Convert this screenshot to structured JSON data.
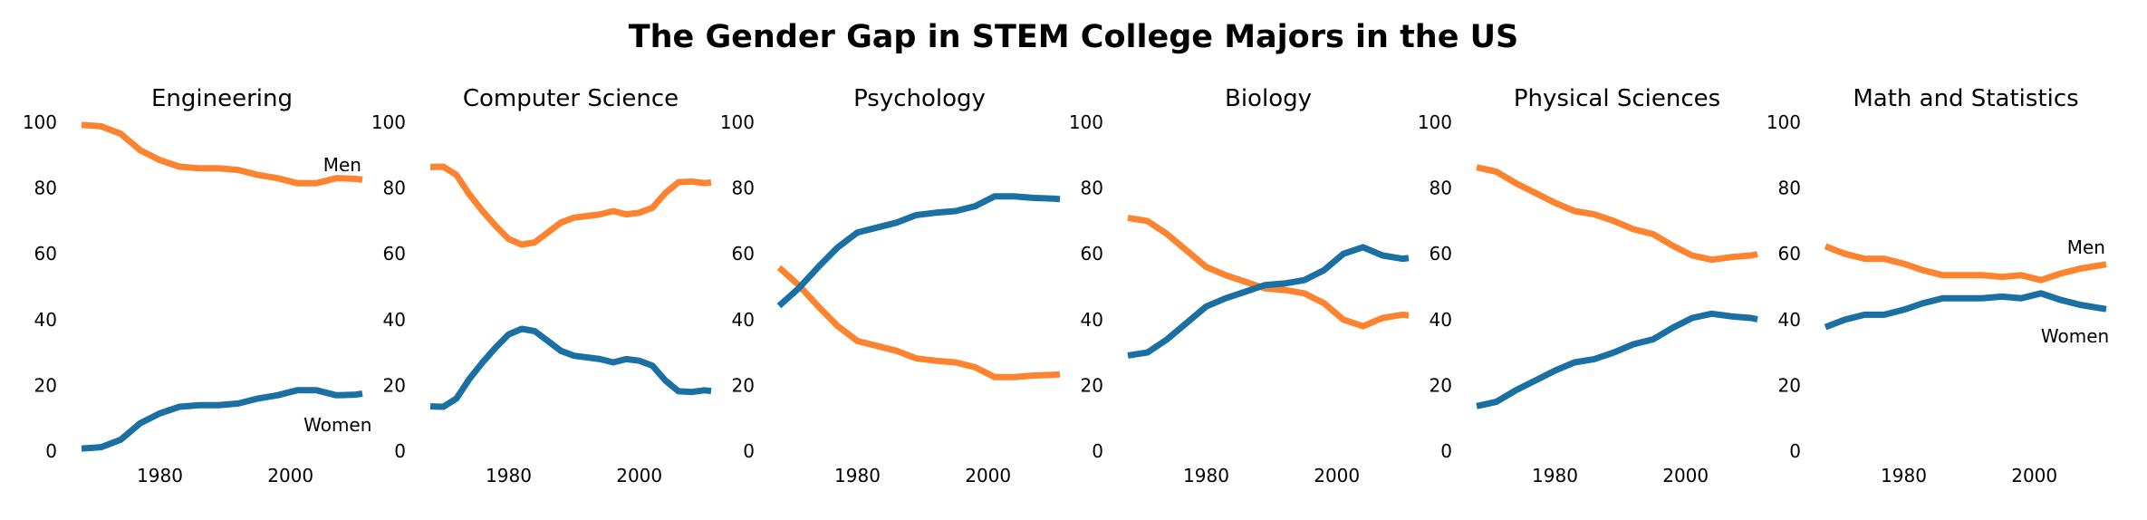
{
  "title": "The Gender Gap in STEM College Majors in the US",
  "colors": {
    "men": "#fc8430",
    "women": "#1a6fa3"
  },
  "chart_data": [
    {
      "type": "line",
      "title": "Engineering",
      "xlim": [
        1968,
        2011
      ],
      "ylim": [
        0,
        100
      ],
      "xticks": [
        1980,
        2000
      ],
      "yticks": [
        0,
        20,
        40,
        60,
        80,
        100
      ],
      "grid": false,
      "legend": "none",
      "x": [
        1968,
        1971,
        1974,
        1977,
        1980,
        1983,
        1986,
        1989,
        1992,
        1995,
        1998,
        2001,
        2004,
        2007,
        2010,
        2011
      ],
      "series": [
        {
          "name": "Men",
          "values": [
            99.2,
            98.8,
            96.5,
            91.5,
            88.5,
            86.5,
            86,
            86,
            85.5,
            84,
            83,
            81.5,
            81.5,
            83,
            82.8,
            82.5
          ]
        },
        {
          "name": "Women",
          "values": [
            0.8,
            1.2,
            3.5,
            8.5,
            11.5,
            13.5,
            14,
            14,
            14.5,
            16,
            17,
            18.5,
            18.5,
            17,
            17.2,
            17.5
          ]
        }
      ],
      "annotations": [
        {
          "text": "Men",
          "x": 2005,
          "y": 87
        },
        {
          "text": "Women",
          "x": 2002,
          "y": 8
        }
      ]
    },
    {
      "type": "line",
      "title": "Computer Science",
      "xlim": [
        1968,
        2011
      ],
      "ylim": [
        0,
        100
      ],
      "xticks": [
        1980,
        2000
      ],
      "yticks": [
        0,
        20,
        40,
        60,
        80,
        100
      ],
      "grid": false,
      "legend": "none",
      "x": [
        1968,
        1970,
        1972,
        1974,
        1976,
        1978,
        1980,
        1982,
        1984,
        1986,
        1988,
        1990,
        1992,
        1994,
        1996,
        1998,
        2000,
        2002,
        2004,
        2006,
        2008,
        2010,
        2011
      ],
      "series": [
        {
          "name": "Men",
          "values": [
            86.4,
            86.5,
            84,
            78,
            73,
            68.5,
            64.5,
            62.8,
            63.5,
            66.5,
            69.5,
            71,
            71.5,
            72,
            73,
            72,
            72.5,
            74,
            78.5,
            81.8,
            82,
            81.5,
            81.7
          ]
        },
        {
          "name": "Women",
          "values": [
            13.6,
            13.5,
            16,
            22,
            27,
            31.5,
            35.5,
            37.2,
            36.5,
            33.5,
            30.5,
            29,
            28.5,
            28,
            27,
            28,
            27.5,
            26,
            21.5,
            18.2,
            18,
            18.5,
            18.3
          ]
        }
      ]
    },
    {
      "type": "line",
      "title": "Psychology",
      "xlim": [
        1968,
        2011
      ],
      "ylim": [
        0,
        100
      ],
      "xticks": [
        1980,
        2000
      ],
      "yticks": [
        0,
        20,
        40,
        60,
        80,
        100
      ],
      "grid": false,
      "legend": "none",
      "x": [
        1968,
        1971,
        1974,
        1977,
        1980,
        1983,
        1986,
        1989,
        1992,
        1995,
        1998,
        2001,
        2004,
        2007,
        2010,
        2011
      ],
      "series": [
        {
          "name": "Men",
          "values": [
            55.8,
            50.5,
            44,
            38,
            33.5,
            32,
            30.5,
            28.2,
            27.5,
            27,
            25.5,
            22.5,
            22.5,
            23,
            23.2,
            23.4
          ]
        },
        {
          "name": "Women",
          "values": [
            44.2,
            49.5,
            56,
            62,
            66.5,
            68,
            69.5,
            71.8,
            72.5,
            73,
            74.5,
            77.5,
            77.5,
            77,
            76.8,
            76.6
          ]
        }
      ]
    },
    {
      "type": "line",
      "title": "Biology",
      "xlim": [
        1968,
        2011
      ],
      "ylim": [
        0,
        100
      ],
      "xticks": [
        1980,
        2000
      ],
      "yticks": [
        0,
        20,
        40,
        60,
        80,
        100
      ],
      "grid": false,
      "legend": "none",
      "x": [
        1968,
        1971,
        1974,
        1977,
        1980,
        1983,
        1986,
        1989,
        1992,
        1995,
        1998,
        2001,
        2004,
        2007,
        2010,
        2011
      ],
      "series": [
        {
          "name": "Men",
          "values": [
            70.9,
            70,
            66,
            61,
            56,
            53.5,
            51.5,
            49.5,
            49,
            48,
            45,
            40,
            38,
            40.5,
            41.5,
            41.3
          ]
        },
        {
          "name": "Women",
          "values": [
            29.1,
            30,
            34,
            39,
            44,
            46.5,
            48.5,
            50.5,
            51,
            52,
            55,
            60,
            62,
            59.5,
            58.5,
            58.7
          ]
        }
      ]
    },
    {
      "type": "line",
      "title": "Physical Sciences",
      "xlim": [
        1968,
        2011
      ],
      "ylim": [
        0,
        100
      ],
      "xticks": [
        1980,
        2000
      ],
      "yticks": [
        0,
        20,
        40,
        60,
        80,
        100
      ],
      "grid": false,
      "legend": "none",
      "x": [
        1968,
        1971,
        1974,
        1977,
        1980,
        1983,
        1986,
        1989,
        1992,
        1995,
        1998,
        2001,
        2004,
        2007,
        2010,
        2011
      ],
      "series": [
        {
          "name": "Men",
          "values": [
            86.3,
            85,
            81.5,
            78.5,
            75.5,
            73,
            72,
            70,
            67.5,
            66,
            62.5,
            59.5,
            58.2,
            59,
            59.5,
            59.9
          ]
        },
        {
          "name": "Women",
          "values": [
            13.7,
            15,
            18.5,
            21.5,
            24.5,
            27,
            28,
            30,
            32.5,
            34,
            37.5,
            40.5,
            41.8,
            41,
            40.5,
            40.1
          ]
        }
      ]
    },
    {
      "type": "line",
      "title": "Math and Statistics",
      "xlim": [
        1968,
        2011
      ],
      "ylim": [
        0,
        100
      ],
      "xticks": [
        1980,
        2000
      ],
      "yticks": [
        0,
        20,
        40,
        60,
        80,
        100
      ],
      "grid": false,
      "legend": "none",
      "x": [
        1968,
        1971,
        1974,
        1977,
        1980,
        1983,
        1986,
        1989,
        1992,
        1995,
        1998,
        2001,
        2004,
        2007,
        2010,
        2011
      ],
      "series": [
        {
          "name": "Men",
          "values": [
            62.3,
            60,
            58.5,
            58.5,
            57,
            55,
            53.5,
            53.5,
            53.5,
            53,
            53.5,
            52,
            54,
            55.5,
            56.5,
            56.8
          ]
        },
        {
          "name": "Women",
          "values": [
            37.7,
            40,
            41.5,
            41.5,
            43,
            45,
            46.5,
            46.5,
            46.5,
            47,
            46.5,
            48,
            46,
            44.5,
            43.5,
            43.2
          ]
        }
      ],
      "annotations": [
        {
          "text": "Men",
          "x": 2005,
          "y": 62
        },
        {
          "text": "Women",
          "x": 2001,
          "y": 35
        }
      ]
    }
  ]
}
